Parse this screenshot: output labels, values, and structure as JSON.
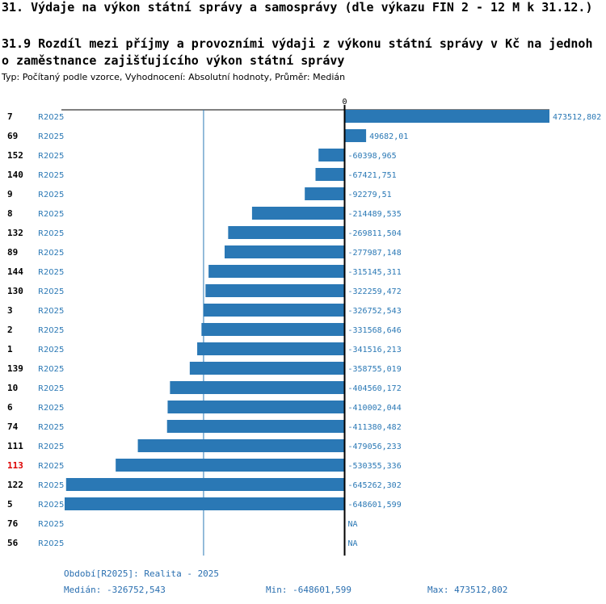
{
  "header": {
    "title": "31. Výdaje na výkon státní správy a samosprávy (dle výkazu FIN 2 - 12 M k 31.12.)",
    "subtitle_line1": "31.9 Rozdíl mezi příjmy a provozními výdaji z výkonu státní správy v Kč na jednoh",
    "subtitle_line2": "o zaměstnance zajišťujícího výkon státní správy",
    "meta": "Typ: Počítaný podle vzorce, Vyhodnocení: Absolutní hodnoty, Průměr: Medián"
  },
  "chart_data": {
    "type": "bar",
    "orientation": "horizontal",
    "zero_label": "0",
    "series_label": "R2025",
    "median": -326752.543,
    "xlim": [
      -648601.599,
      473512.802
    ],
    "highlight_color": "#dd0000",
    "bar_color": "#2a78b5",
    "rows": [
      {
        "id": "7",
        "series": "R2025",
        "value": 473512.802,
        "label": "473512,802",
        "highlight": false
      },
      {
        "id": "69",
        "series": "R2025",
        "value": 49682.01,
        "label": "49682,01",
        "highlight": false
      },
      {
        "id": "152",
        "series": "R2025",
        "value": -60398.965,
        "label": "-60398,965",
        "highlight": false
      },
      {
        "id": "140",
        "series": "R2025",
        "value": -67421.751,
        "label": "-67421,751",
        "highlight": false
      },
      {
        "id": "9",
        "series": "R2025",
        "value": -92279.51,
        "label": "-92279,51",
        "highlight": false
      },
      {
        "id": "8",
        "series": "R2025",
        "value": -214489.535,
        "label": "-214489,535",
        "highlight": false
      },
      {
        "id": "132",
        "series": "R2025",
        "value": -269811.504,
        "label": "-269811,504",
        "highlight": false
      },
      {
        "id": "89",
        "series": "R2025",
        "value": -277987.148,
        "label": "-277987,148",
        "highlight": false
      },
      {
        "id": "144",
        "series": "R2025",
        "value": -315145.311,
        "label": "-315145,311",
        "highlight": false
      },
      {
        "id": "130",
        "series": "R2025",
        "value": -322259.472,
        "label": "-322259,472",
        "highlight": false
      },
      {
        "id": "3",
        "series": "R2025",
        "value": -326752.543,
        "label": "-326752,543",
        "highlight": false
      },
      {
        "id": "2",
        "series": "R2025",
        "value": -331568.646,
        "label": "-331568,646",
        "highlight": false
      },
      {
        "id": "1",
        "series": "R2025",
        "value": -341516.213,
        "label": "-341516,213",
        "highlight": false
      },
      {
        "id": "139",
        "series": "R2025",
        "value": -358755.019,
        "label": "-358755,019",
        "highlight": false
      },
      {
        "id": "10",
        "series": "R2025",
        "value": -404560.172,
        "label": "-404560,172",
        "highlight": false
      },
      {
        "id": "6",
        "series": "R2025",
        "value": -410002.044,
        "label": "-410002,044",
        "highlight": false
      },
      {
        "id": "74",
        "series": "R2025",
        "value": -411380.482,
        "label": "-411380,482",
        "highlight": false
      },
      {
        "id": "111",
        "series": "R2025",
        "value": -479056.233,
        "label": "-479056,233",
        "highlight": false
      },
      {
        "id": "113",
        "series": "R2025",
        "value": -530355.336,
        "label": "-530355,336",
        "highlight": true
      },
      {
        "id": "122",
        "series": "R2025",
        "value": -645262.302,
        "label": "-645262,302",
        "highlight": false
      },
      {
        "id": "5",
        "series": "R2025",
        "value": -648601.599,
        "label": "-648601,599",
        "highlight": false
      },
      {
        "id": "76",
        "series": "R2025",
        "value": null,
        "label": "NA",
        "highlight": false
      },
      {
        "id": "56",
        "series": "R2025",
        "value": null,
        "label": "NA",
        "highlight": false
      }
    ]
  },
  "footer": {
    "period": "Období[R2025]: Realita - 2025",
    "median": "Medián: -326752,543",
    "min": "Min: -648601,599",
    "max": "Max: 473512,802"
  }
}
